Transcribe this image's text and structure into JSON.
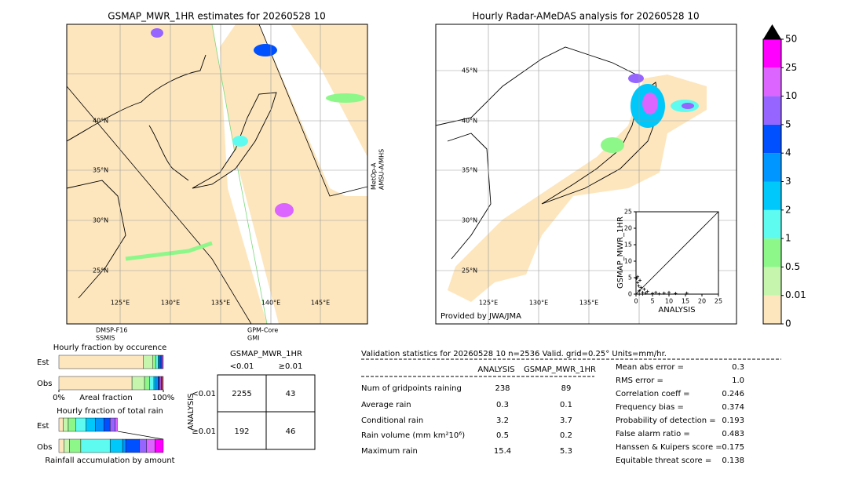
{
  "left_map": {
    "title": "GSMAP_MWR_1HR estimates for 20260528 10",
    "lat_labels": [
      "40°N",
      "35°N",
      "30°N",
      "25°N"
    ],
    "lon_labels": [
      "125°E",
      "130°E",
      "135°E",
      "140°E",
      "145°E"
    ],
    "satellites": [
      {
        "name": "DMSP-F16",
        "sensor": "SSMIS"
      },
      {
        "name": "GPM-Core",
        "sensor": "GMI"
      },
      {
        "name": "MetOp-A",
        "sensor": "AMSU-A/MHS"
      }
    ]
  },
  "right_map": {
    "title": "Hourly Radar-AMeDAS analysis for 20260528 10",
    "lat_labels": [
      "45°N",
      "40°N",
      "35°N",
      "30°N",
      "25°N"
    ],
    "lon_labels": [
      "125°E",
      "130°E",
      "135°E"
    ],
    "credit": "Provided by JWA/JMA"
  },
  "chart_data": [
    {
      "type": "scatter",
      "xlabel": "ANALYSIS",
      "ylabel": "GSMAP_MWR_1HR",
      "x": [
        0.2,
        0.5,
        0.8,
        1,
        1.2,
        1.5,
        2,
        2.5,
        3,
        3.5,
        5,
        6,
        7,
        8.5,
        10,
        12,
        15.4,
        1,
        2,
        0.5
      ],
      "values": [
        4.8,
        3.5,
        2.5,
        1,
        4.2,
        2,
        0.5,
        1.5,
        0.3,
        0.8,
        0.2,
        0.5,
        0.1,
        0.3,
        0.5,
        0.2,
        0.3,
        0,
        0,
        5.3
      ],
      "color": "#000000",
      "xlim": [
        0,
        25
      ],
      "ylim": [
        0,
        25
      ],
      "xticks": [
        0,
        5,
        10,
        15,
        20,
        25
      ],
      "yticks": [
        0,
        5,
        10,
        15,
        20,
        25
      ]
    },
    {
      "type": "colorbar",
      "levels": [
        0,
        0.01,
        0.5,
        1,
        2,
        3,
        4,
        5,
        10,
        25,
        50
      ],
      "colors": [
        "#fde6bd",
        "#c6f5ae",
        "#8ef78a",
        "#5efcf0",
        "#00c8fa",
        "#0096ff",
        "#0050ff",
        "#9664ff",
        "#dc64ff",
        "#ff00ff",
        "#d29a3e"
      ],
      "extend_color": "#000000"
    },
    {
      "type": "stacked-fraction",
      "title": "Hourly fraction by occurence",
      "categories": [
        "Est",
        "Obs"
      ],
      "xlabel": "Areal fraction",
      "xticks": [
        {
          "value": 0,
          "label": "0%"
        },
        {
          "value": 100,
          "label": "100%"
        }
      ],
      "xlim": [
        0,
        100
      ],
      "series": [
        {
          "values": [
            81,
            70
          ]
        },
        {
          "values": [
            9,
            12
          ]
        },
        {
          "values": [
            3,
            5
          ]
        },
        {
          "values": [
            2,
            4
          ]
        },
        {
          "values": [
            1,
            2
          ]
        },
        {
          "values": [
            1,
            2
          ]
        },
        {
          "values": [
            1,
            1
          ]
        },
        {
          "values": [
            1,
            1
          ]
        },
        {
          "values": [
            1,
            1
          ]
        },
        {
          "values": [
            0,
            1
          ]
        },
        {
          "values": [
            0,
            1
          ]
        }
      ]
    },
    {
      "type": "stacked-fraction",
      "title": "Hourly fraction of total rain",
      "categories": [
        "Est",
        "Obs"
      ],
      "xlabel": "Rainfall accumulation by amount",
      "xlim": [
        0,
        100
      ],
      "series": [
        {
          "values": [
            4,
            5
          ]
        },
        {
          "values": [
            5,
            5
          ]
        },
        {
          "values": [
            7,
            11
          ]
        },
        {
          "values": [
            10,
            28
          ]
        },
        {
          "values": [
            9,
            12
          ]
        },
        {
          "values": [
            8,
            3
          ]
        },
        {
          "values": [
            6,
            13
          ]
        },
        {
          "values": [
            5,
            7
          ]
        },
        {
          "values": [
            2,
            8
          ]
        },
        {
          "values": [
            0,
            8
          ]
        },
        {
          "values": [
            0,
            0
          ]
        }
      ]
    }
  ],
  "contingency": {
    "title": "GSMAP_MWR_1HR",
    "col_labels": [
      "<0.01",
      "≥0.01"
    ],
    "row_title": "ANALYSIS",
    "row_labels": [
      "<0.01",
      "≥0.01"
    ],
    "cells": [
      [
        2255,
        43
      ],
      [
        192,
        46
      ]
    ]
  },
  "stats": {
    "header": "Validation statistics for 20260528 10  n=2536 Valid. grid=0.25° Units=mm/hr.",
    "columns": [
      "ANALYSIS",
      "GSMAP_MWR_1HR"
    ],
    "rows": [
      {
        "label": "Num of gridpoints raining",
        "values": [
          "238",
          "89"
        ]
      },
      {
        "label": "Average rain",
        "values": [
          "0.3",
          "0.1"
        ]
      },
      {
        "label": "Conditional rain",
        "values": [
          "3.2",
          "3.7"
        ]
      },
      {
        "label": "Rain volume (mm km²10⁶)",
        "values": [
          "0.5",
          "0.2"
        ]
      },
      {
        "label": "Maximum rain",
        "values": [
          "15.4",
          "5.3"
        ]
      }
    ],
    "scores": [
      {
        "label": "Mean abs error =",
        "value": "0.3"
      },
      {
        "label": "RMS error =",
        "value": "1.0"
      },
      {
        "label": "Correlation coeff =",
        "value": "0.246"
      },
      {
        "label": "Frequency bias =",
        "value": "0.374"
      },
      {
        "label": "Probability of detection =",
        "value": "0.193"
      },
      {
        "label": "False alarm ratio =",
        "value": "0.483"
      },
      {
        "label": "Hanssen & Kuipers score =",
        "value": "0.175"
      },
      {
        "label": "Equitable threat score =",
        "value": "0.138"
      }
    ]
  }
}
